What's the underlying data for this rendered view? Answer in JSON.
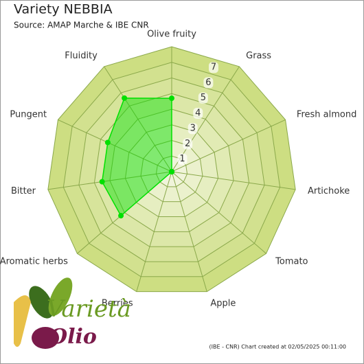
{
  "chart_data": {
    "type": "radar",
    "title": "Variety NEBBIA",
    "subtitle": "Source: AMAP Marche & IBE CNR",
    "footer": "(IBE - CNR) Chart created at 02/05/2025 00:11:00",
    "logo": [
      "Varietà",
      "Olio"
    ],
    "categories": [
      "Olive fruity",
      "Grass",
      "Fresh almond",
      "Artichoke",
      "Tomato",
      "Apple",
      "Berries",
      "Aromatic herbs",
      "Bitter",
      "Pungent",
      "Fluidity"
    ],
    "series": [
      {
        "color": "#00e000",
        "values": [
          4.7,
          0,
          0,
          0,
          0,
          0,
          0,
          4.3,
          4.5,
          4.5,
          5.6
        ]
      }
    ],
    "ylim": [
      0,
      8
    ],
    "yticks": [
      1,
      2,
      3,
      4,
      5,
      6,
      7
    ]
  }
}
